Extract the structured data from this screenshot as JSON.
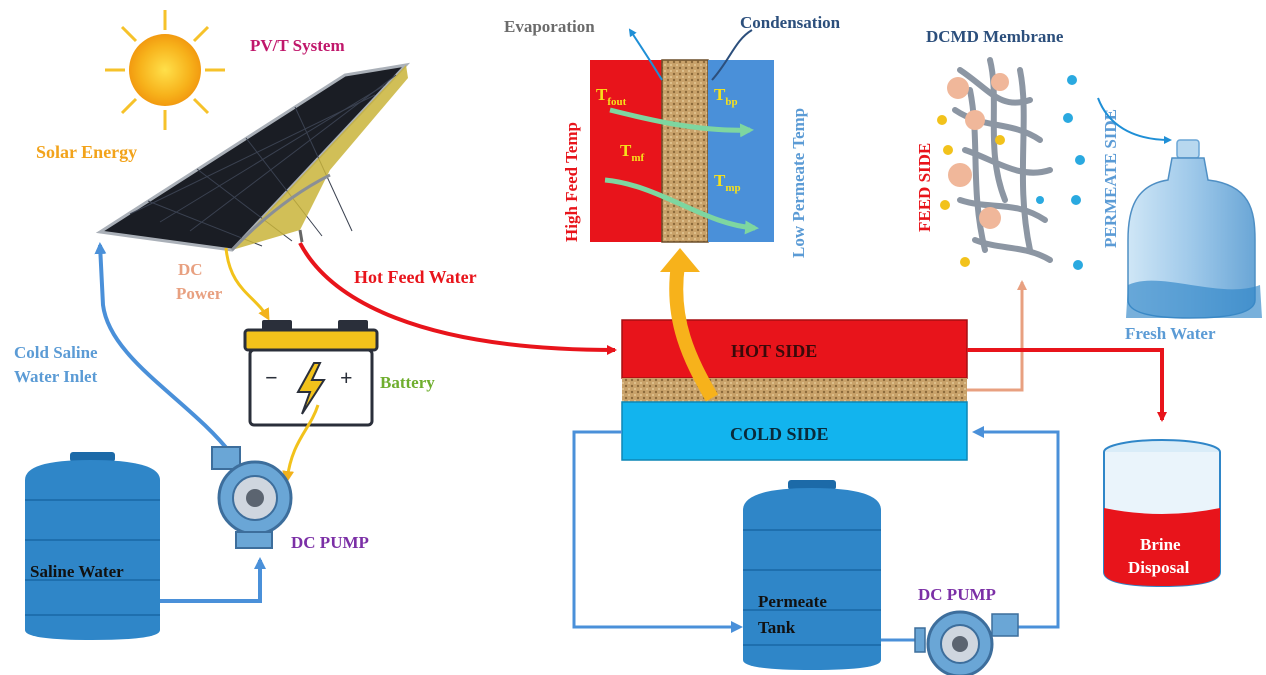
{
  "labels": {
    "pvt_system": "PV/T System",
    "solar_energy": "Solar Energy",
    "dc_power_line1": "DC",
    "dc_power_line2": "Power",
    "battery": "Battery",
    "cold_saline_line1": "Cold Saline",
    "cold_saline_line2": "Water Inlet",
    "saline_water": "Saline Water",
    "dc_pump_left": "DC PUMP",
    "hot_feed_water": "Hot Feed Water",
    "evaporation": "Evaporation",
    "condensation": "Condensation",
    "high_feed_temp": "High Feed Temp",
    "low_permeate_temp": "Low Permeate Temp",
    "t_fout_main": "T",
    "t_fout_sub": "fout",
    "t_mf_main": "T",
    "t_mf_sub": "mf",
    "t_bp_main": "T",
    "t_bp_sub": "bp",
    "t_mp_main": "T",
    "t_mp_sub": "mp",
    "dcmd_membrane": "DCMD Membrane",
    "feed_side": "FEED SIDE",
    "permeate_side": "PERMEATE SIDE",
    "fresh_water": "Fresh Water",
    "hot_side": "HOT SIDE",
    "cold_side": "COLD SIDE",
    "permeate_tank_line1": "Permeate",
    "permeate_tank_line2": "Tank",
    "dc_pump_right": "DC PUMP",
    "brine_line1": "Brine",
    "brine_line2": "Disposal"
  },
  "colors": {
    "red": "#e8141b",
    "blue_line": "#4a90d9",
    "tank_blue": "#2f86c8",
    "cold_side": "#12b4ee",
    "purple": "#7b2fa6",
    "pvt_magenta": "#c0176b",
    "solar_orange": "#f2a31b",
    "battery_green": "#6fae2e",
    "dc_power_salmon": "#e8a080",
    "permeate_blue": "#5b9bd5",
    "condensation_navy": "#2c4f7c"
  }
}
